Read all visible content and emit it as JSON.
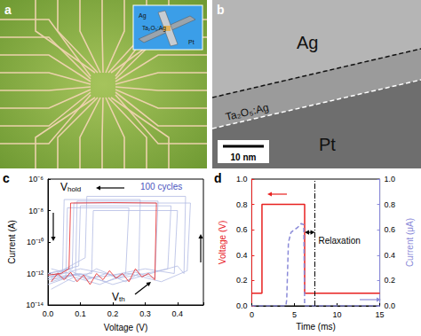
{
  "panels": [
    {
      "label": "a",
      "inset_labels": [
        "Ag",
        "Ta₂O₅:Ag",
        "Pt"
      ]
    },
    {
      "label": "b",
      "layers": [
        "Ag",
        "Ta₂O₅:Ag",
        "Pt"
      ],
      "scale_bar": "10 nm"
    }
  ],
  "chart_data": [
    {
      "panel": "c",
      "type": "line",
      "log": "y",
      "grid": false,
      "x_label": "Voltage (V)",
      "y_label": "Current (A)",
      "xlim": [
        0,
        0.48
      ],
      "xticks": [
        {
          "value": 0,
          "label": "0.0"
        },
        0.1,
        0.2,
        0.3,
        0.4
      ],
      "ylim": [
        1e-14,
        1e-06
      ],
      "yticks": [
        {
          "value": 1e-14,
          "label": "10⁻¹⁴"
        },
        {
          "value": 1e-12,
          "label": "10⁻¹²"
        },
        {
          "value": 1e-10,
          "label": "10⁻¹⁰"
        },
        {
          "value": 1e-08,
          "label": "10⁻⁸"
        },
        {
          "value": 1e-06,
          "label": "10⁻⁶"
        }
      ],
      "annotations": [
        {
          "text": "V",
          "subscript": "hold"
        },
        {
          "text": "V",
          "subscript": "th"
        },
        {
          "text": "100 cycles",
          "color": "#4b55c0"
        }
      ],
      "series": [
        {
          "color": "#b3bbe3",
          "values": [
            [
              0.01,
              5e-13
            ],
            [
              0.06,
              2e-12
            ],
            [
              0.12,
              4e-13
            ],
            [
              0.18,
              1e-12
            ],
            [
              0.24,
              3e-13
            ],
            [
              0.28,
              1e-12
            ],
            [
              0.285,
              5e-08
            ],
            [
              0.05,
              5e-08
            ],
            [
              0.045,
              1e-12
            ],
            [
              0.0,
              8e-13
            ]
          ]
        },
        {
          "color": "#b3bbe3",
          "values": [
            [
              0.01,
              1e-12
            ],
            [
              0.08,
              3e-13
            ],
            [
              0.15,
              2e-12
            ],
            [
              0.22,
              5e-13
            ],
            [
              0.3,
              1e-12
            ],
            [
              0.37,
              2e-12
            ],
            [
              0.38,
              2e-08
            ],
            [
              0.1,
              2e-08
            ],
            [
              0.095,
              3e-12
            ],
            [
              0.0,
              1e-12
            ]
          ]
        },
        {
          "color": "#b3bbe3",
          "values": [
            [
              0.01,
              3e-13
            ],
            [
              0.1,
              1e-12
            ],
            [
              0.2,
              2e-13
            ],
            [
              0.3,
              8e-13
            ],
            [
              0.4,
              3e-12
            ],
            [
              0.42,
              1e-12
            ],
            [
              0.425,
              8e-08
            ],
            [
              0.12,
              8e-08
            ],
            [
              0.115,
              1e-11
            ],
            [
              0.0,
              5e-13
            ]
          ]
        },
        {
          "color": "#b3bbe3",
          "values": [
            [
              0.01,
              2e-12
            ],
            [
              0.12,
              5e-13
            ],
            [
              0.25,
              1e-12
            ],
            [
              0.35,
              3e-13
            ],
            [
              0.43,
              1.5e-12
            ],
            [
              0.44,
              3e-08
            ],
            [
              0.08,
              3e-08
            ],
            [
              0.075,
              2e-12
            ],
            [
              0.0,
              1e-12
            ]
          ]
        },
        {
          "color": "#b3bbe3",
          "values": [
            [
              0.01,
              1e-13
            ],
            [
              0.08,
              6e-13
            ],
            [
              0.16,
              2e-13
            ],
            [
              0.24,
              1e-12
            ],
            [
              0.25,
              1.5e-08
            ],
            [
              0.06,
              1.5e-08
            ],
            [
              0.055,
              5e-13
            ],
            [
              0.0,
              2e-13
            ]
          ]
        },
        {
          "color": "#b3bbe3",
          "values": [
            [
              0.01,
              6e-13
            ],
            [
              0.1,
              2e-12
            ],
            [
              0.2,
              8e-13
            ],
            [
              0.3,
              2e-12
            ],
            [
              0.39,
              1e-12
            ],
            [
              0.4,
              1e-08
            ],
            [
              0.14,
              1e-08
            ],
            [
              0.135,
              1e-12
            ],
            [
              0.0,
              6e-13
            ]
          ]
        },
        {
          "color": "#b3bbe3",
          "values": [
            [
              0.01,
              4e-13
            ],
            [
              0.09,
              1e-12
            ],
            [
              0.18,
              3e-13
            ],
            [
              0.27,
              1.2e-12
            ],
            [
              0.33,
              5e-13
            ],
            [
              0.34,
              4e-08
            ],
            [
              0.09,
              4e-08
            ],
            [
              0.085,
              8e-13
            ],
            [
              0.0,
              4e-13
            ]
          ]
        },
        {
          "color": "#e8201f",
          "values": [
            [
              0.01,
              3e-13
            ],
            [
              0.03,
              1e-12
            ],
            [
              0.05,
              4e-13
            ],
            [
              0.07,
              1.2e-12
            ],
            [
              0.09,
              3e-13
            ],
            [
              0.11,
              8e-13
            ],
            [
              0.13,
              2e-13
            ],
            [
              0.15,
              1e-12
            ],
            [
              0.17,
              4e-13
            ],
            [
              0.19,
              1.5e-12
            ],
            [
              0.21,
              5e-13
            ],
            [
              0.23,
              1e-12
            ],
            [
              0.25,
              3e-13
            ],
            [
              0.27,
              2e-12
            ],
            [
              0.29,
              6e-13
            ],
            [
              0.31,
              1e-12
            ],
            [
              0.33,
              4e-13
            ],
            [
              0.335,
              3e-08
            ],
            [
              0.2,
              3.2e-08
            ],
            [
              0.07,
              3e-08
            ],
            [
              0.065,
              2e-12
            ],
            [
              0.04,
              1e-12
            ],
            [
              0.0,
              8e-13
            ]
          ]
        }
      ]
    },
    {
      "panel": "d",
      "type": "line",
      "grid": false,
      "x_label": "Time (ms)",
      "y_label": "Voltage (V)",
      "y2_label": "Current (μA)",
      "xlim": [
        0,
        15
      ],
      "xticks": [
        0,
        5,
        10,
        15
      ],
      "ylim": [
        0,
        1
      ],
      "yticks": [
        {
          "value": 0,
          "label": "0.0"
        },
        0.2,
        0.4,
        0.6,
        0.8,
        {
          "value": 1,
          "label": "1.0"
        }
      ],
      "y2lim": [
        0,
        1
      ],
      "y2ticks": [
        {
          "value": 0,
          "label": "0.0"
        },
        0.2,
        0.4,
        0.6,
        0.8,
        {
          "value": 1,
          "label": "1.0"
        }
      ],
      "series": [
        {
          "color": "#e8201f",
          "line_style": "solid",
          "x": [
            0,
            1.2,
            1.2,
            6.2,
            6.2,
            15
          ],
          "values": [
            0.1,
            0.1,
            0.8,
            0.8,
            0.1,
            0.1
          ]
        },
        {
          "axis": "y2",
          "color": "#8a8ad8",
          "line_style": "dashed",
          "x": [
            0,
            4.0,
            4.1,
            4.3,
            4.6,
            5.0,
            5.4,
            5.8,
            6.1,
            6.2,
            7,
            15
          ],
          "values": [
            0,
            0,
            0.05,
            0.5,
            0.58,
            0.6,
            0.62,
            0.65,
            0.64,
            0,
            0,
            0
          ]
        }
      ],
      "vlines": [
        {
          "x": 7.4,
          "line_style": "dashdot"
        }
      ],
      "annotations": [
        {
          "text": "Relaxation"
        }
      ]
    }
  ]
}
